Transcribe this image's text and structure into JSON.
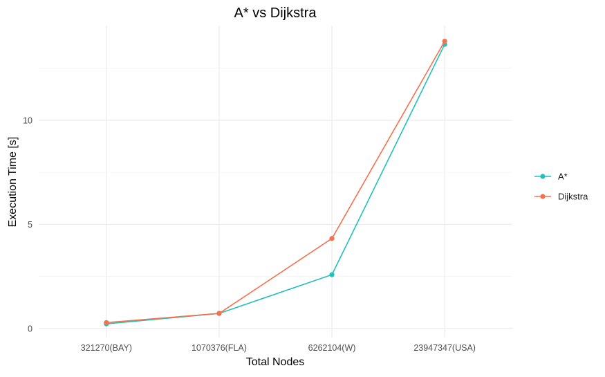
{
  "chart_data": {
    "type": "line",
    "title": "A* vs Dijkstra",
    "xlabel": "Total Nodes",
    "ylabel": "Execution Time [s]",
    "categories": [
      "321270(BAY)",
      "1070376(FLA)",
      "6262104(W)",
      "23947347(USA)"
    ],
    "y_ticks": [
      "0",
      "5",
      "10"
    ],
    "y_tick_values": [
      0,
      5,
      10
    ],
    "ylim": [
      -0.44,
      14.55
    ],
    "grid": true,
    "legend_position": "right",
    "series": [
      {
        "name": "A*",
        "color": "#22c0b9",
        "values": [
          0.22,
          0.72,
          2.58,
          13.65
        ]
      },
      {
        "name": "Dijkstra",
        "color": "#f5714e",
        "values": [
          0.28,
          0.72,
          4.32,
          13.8
        ]
      }
    ]
  }
}
